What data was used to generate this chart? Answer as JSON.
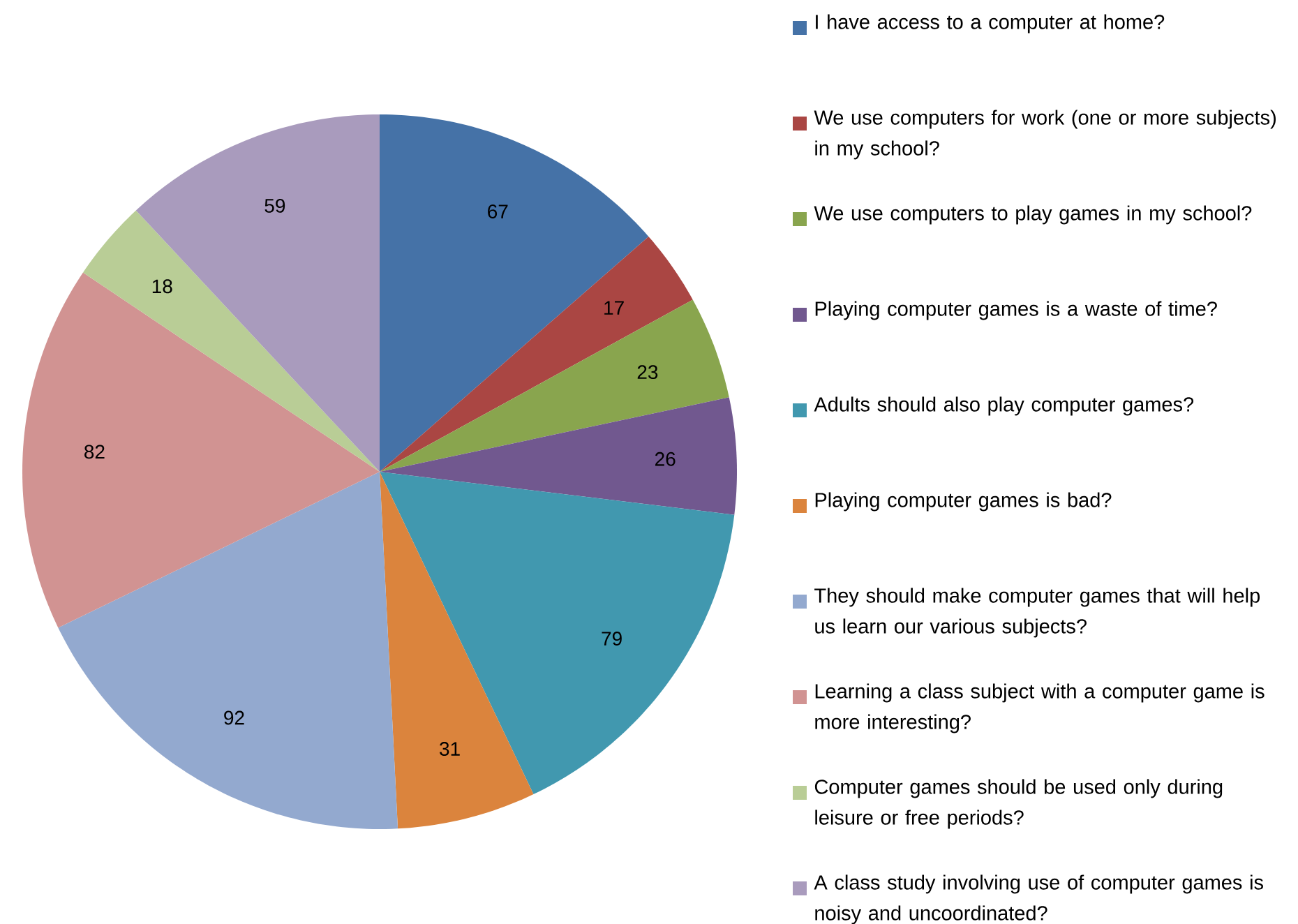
{
  "chart_data": {
    "type": "pie",
    "categories": [
      "I have access to a computer at home?",
      "We use computers for work (one or more subjects) in my school?",
      "We use computers to play games in my school?",
      "Playing computer games is a waste of time?",
      "Adults should also play computer games?",
      "Playing computer games is bad?",
      "They should make computer games that will help us learn our various subjects?",
      "Learning a class subject with a computer game is more interesting?",
      "Computer games should be used only during leisure or free periods?",
      "A class study involving use of computer games is noisy and uncoordinated?"
    ],
    "values": [
      67,
      17,
      23,
      26,
      79,
      31,
      92,
      82,
      18,
      59
    ],
    "colors": [
      "#4572a7",
      "#aa4643",
      "#89a54e",
      "#71588f",
      "#4198af",
      "#db843d",
      "#93a9cf",
      "#d19392",
      "#b9cd96",
      "#a99bbd"
    ],
    "data_labels": true,
    "legend": "right"
  }
}
